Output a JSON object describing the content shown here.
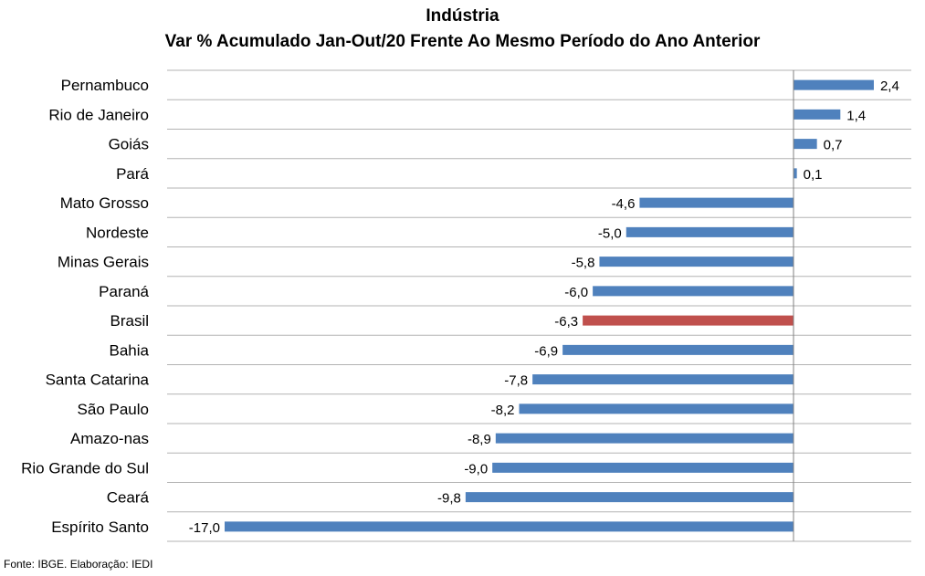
{
  "chart_data": {
    "type": "bar",
    "orientation": "horizontal",
    "title": "Indústria",
    "subtitle": "Var % Acumulado Jan-Out/20 Frente Ao Mesmo Período do Ano Anterior",
    "categories": [
      "Pernambuco",
      "Rio de Janeiro",
      "Goiás",
      "Pará",
      "Mato Grosso",
      "Nordeste",
      "Minas Gerais",
      "Paraná",
      "Brasil",
      "Bahia",
      "Santa Catarina",
      "São Paulo",
      "Amazo-nas",
      "Rio Grande do Sul",
      "Ceará",
      "Espírito Santo"
    ],
    "values": [
      2.4,
      1.4,
      0.7,
      0.1,
      -4.6,
      -5.0,
      -5.8,
      -6.0,
      -6.3,
      -6.9,
      -7.8,
      -8.2,
      -8.9,
      -9.0,
      -9.8,
      -17.0
    ],
    "value_labels": [
      "2,4",
      "1,4",
      "0,7",
      "0,1",
      "-4,6",
      "-5,0",
      "-5,8",
      "-6,0",
      "-6,3",
      "-6,9",
      "-7,8",
      "-8,2",
      "-8,9",
      "-9,0",
      "-9,8",
      "-17,0"
    ],
    "highlight_category": "Brasil",
    "colors": {
      "bar": "#4F81BD",
      "highlight": "#C0504D",
      "grid": "#B3B3B3",
      "axis": "#808080"
    },
    "xlim": [
      -18.5,
      3.5
    ],
    "grid": true,
    "legend": "none"
  },
  "footer": {
    "source": "Fonte: IBGE. Elaboração: IEDI"
  }
}
